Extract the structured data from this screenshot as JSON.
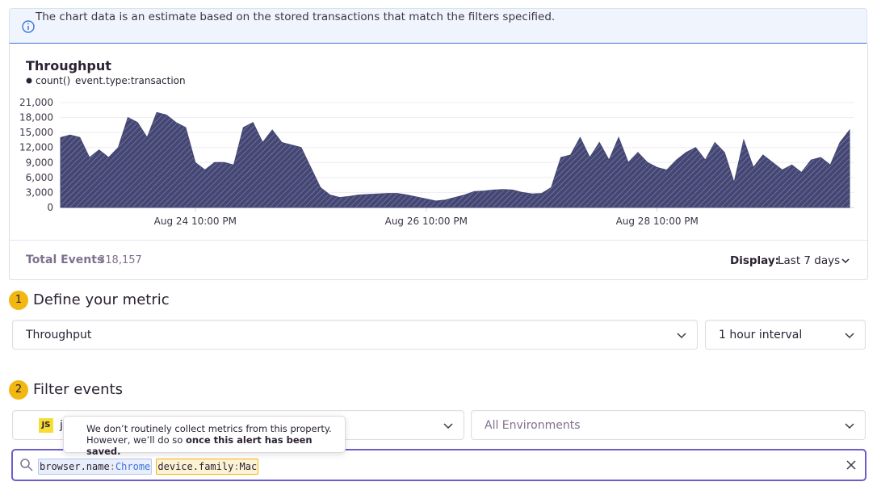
{
  "banner": {
    "text": "The chart data is an estimate based on the stored transactions that match the filters specified."
  },
  "chart_data": {
    "type": "area",
    "title": "Throughput",
    "subtitle": "event.type:transaction",
    "categories": [
      null,
      null,
      null,
      null,
      null,
      null,
      null,
      null,
      null,
      null,
      null,
      null,
      null,
      null,
      "Aug 24 10:00 PM",
      null,
      null,
      null,
      null,
      null,
      null,
      null,
      null,
      null,
      null,
      null,
      null,
      null,
      null,
      null,
      null,
      null,
      null,
      null,
      null,
      null,
      null,
      null,
      "Aug 26 10:00 PM",
      null,
      null,
      null,
      null,
      null,
      null,
      null,
      null,
      null,
      null,
      null,
      null,
      null,
      null,
      null,
      null,
      null,
      null,
      null,
      null,
      null,
      null,
      null,
      "Aug 28 10:00 PM",
      null,
      null,
      null,
      null,
      null,
      null,
      null,
      null,
      null,
      null,
      null,
      null,
      null,
      null,
      null,
      null,
      null,
      null,
      null,
      null
    ],
    "series": [
      {
        "name": "count()",
        "color": "#444674",
        "values": [
          14000,
          14500,
          14000,
          10000,
          11500,
          10000,
          12000,
          18000,
          17000,
          14000,
          19000,
          18500,
          17000,
          16000,
          9000,
          7500,
          9000,
          9000,
          8500,
          16000,
          17000,
          13000,
          15500,
          13000,
          12500,
          12000,
          8000,
          4000,
          2500,
          2000,
          2200,
          2500,
          2600,
          2700,
          2800,
          2800,
          2500,
          2100,
          1700,
          1300,
          1500,
          2000,
          2500,
          3200,
          3300,
          3500,
          3600,
          3500,
          3000,
          2700,
          2800,
          4000,
          10000,
          10500,
          14000,
          10000,
          13000,
          9500,
          14000,
          9000,
          11000,
          9000,
          8000,
          7500,
          9500,
          11000,
          12000,
          9500,
          13000,
          11000,
          5000,
          13500,
          8000,
          10500,
          9000,
          7500,
          8500,
          7000,
          9500,
          10000,
          8500,
          13000,
          15500
        ]
      }
    ],
    "ylim": [
      0,
      21000
    ],
    "yticks": [
      0,
      {
        "value": 3000,
        "label": "3,000"
      },
      {
        "value": 6000,
        "label": "6,000"
      },
      {
        "value": 9000,
        "label": "9,000"
      },
      {
        "value": 12000,
        "label": "12,000"
      },
      {
        "value": 15000,
        "label": "15,000"
      },
      {
        "value": 18000,
        "label": "18,000"
      },
      {
        "value": 21000,
        "label": "21,000"
      }
    ],
    "grid": true
  },
  "summary": {
    "total_label": "Total Events",
    "total_value": "318,157",
    "display_label": "Display:",
    "display_value": "Last 7 days"
  },
  "steps": [
    {
      "number": "1",
      "title": "Define your metric",
      "fields": [
        "Throughput",
        "1 hour interval"
      ]
    },
    {
      "number": "2",
      "title": "Filter events",
      "icon": "JS",
      "fields": [
        "j",
        "All Environments"
      ]
    }
  ],
  "tooltip": {
    "line1": "We don’t routinely collect metrics from this property.",
    "line2": "However, we’ll do so",
    "line2_bold": "once this alert has been saved."
  },
  "search": {
    "separator": ":",
    "tokens": [
      {
        "key": "browser.name",
        "value": "Chrome"
      },
      {
        "key": "device.family",
        "value": "Mac"
      }
    ]
  }
}
